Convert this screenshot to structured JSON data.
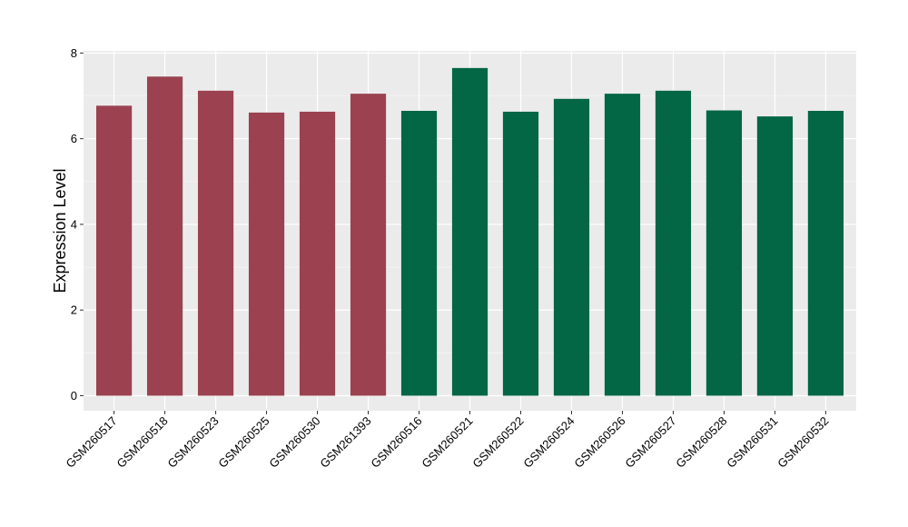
{
  "chart_data": {
    "type": "bar",
    "title": "",
    "xlabel": "",
    "ylabel": "Expression Level",
    "ylim": [
      -0.35,
      8.05
    ],
    "yticks": [
      0,
      2,
      4,
      6,
      8
    ],
    "grid": true,
    "legend": "none",
    "categories": [
      "GSM260517",
      "GSM260518",
      "GSM260523",
      "GSM260525",
      "GSM260530",
      "GSM261393",
      "GSM260516",
      "GSM260521",
      "GSM260522",
      "GSM260524",
      "GSM260526",
      "GSM260527",
      "GSM260528",
      "GSM260531",
      "GSM260532"
    ],
    "values": [
      6.77,
      7.45,
      7.12,
      6.61,
      6.63,
      7.05,
      6.65,
      7.65,
      6.63,
      6.93,
      7.05,
      7.12,
      6.66,
      6.52,
      6.65
    ],
    "groups": [
      "A",
      "A",
      "A",
      "A",
      "A",
      "A",
      "B",
      "B",
      "B",
      "B",
      "B",
      "B",
      "B",
      "B",
      "B"
    ],
    "colors": {
      "A": "#9b4150",
      "B": "#036644",
      "panel": "#ebebeb",
      "grid": "#ffffff",
      "tick": "#333333"
    }
  }
}
